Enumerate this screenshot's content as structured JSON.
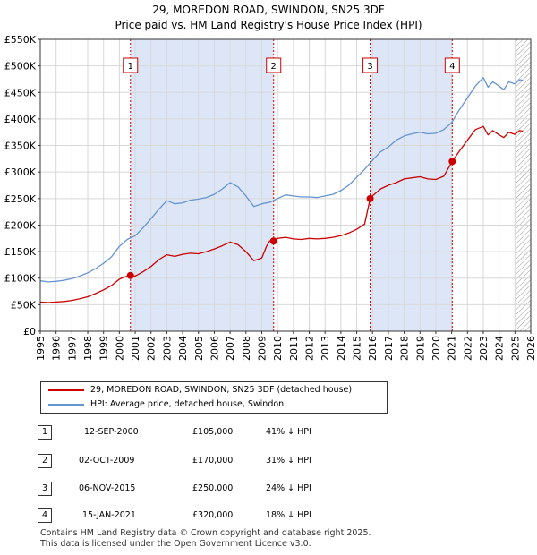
{
  "title": "29, MOREDON ROAD, SWINDON, SN25 3DF",
  "subtitle": "Price paid vs. HM Land Registry's House Price Index (HPI)",
  "colors": {
    "property": "#cc0000",
    "hpi": "#6495d2",
    "shade": "#dde6f7",
    "marker": "#cc0000"
  },
  "chart_data": {
    "type": "line",
    "title": "29, MOREDON ROAD, SWINDON, SN25 3DF",
    "subtitle": "Price paid vs. HM Land Registry's House Price Index (HPI)",
    "xlim": [
      1995,
      2026
    ],
    "ylim": [
      0,
      550000
    ],
    "y_ticks": [
      0,
      50000,
      100000,
      150000,
      200000,
      250000,
      300000,
      350000,
      400000,
      450000,
      500000,
      550000
    ],
    "y_tick_labels": [
      "£0",
      "£50K",
      "£100K",
      "£150K",
      "£200K",
      "£250K",
      "£300K",
      "£350K",
      "£400K",
      "£450K",
      "£500K",
      "£550K"
    ],
    "x_ticks": [
      1995,
      1996,
      1997,
      1998,
      1999,
      2000,
      2001,
      2002,
      2003,
      2004,
      2005,
      2006,
      2007,
      2008,
      2009,
      2010,
      2011,
      2012,
      2013,
      2014,
      2015,
      2016,
      2017,
      2018,
      2019,
      2020,
      2021,
      2022,
      2023,
      2024,
      2025,
      2026
    ],
    "x_tick_labels": [
      "1995",
      "1996",
      "1997",
      "1998",
      "1999",
      "2000",
      "2001",
      "2002",
      "2003",
      "2004",
      "2005",
      "2006",
      "2007",
      "2008",
      "2009",
      "2010",
      "2011",
      "2012",
      "2013",
      "2014",
      "2015",
      "2016",
      "2017",
      "2018",
      "2019",
      "2020",
      "2021",
      "2022",
      "2023",
      "2024",
      "2025",
      "2026"
    ],
    "grid": true,
    "shaded_periods": [
      [
        2000.7,
        2009.75
      ],
      [
        2015.85,
        2021.04
      ]
    ],
    "hatched_after": 2025.0,
    "series": [
      {
        "name": "29, MOREDON ROAD, SWINDON, SN25 3DF (detached house)",
        "x": [
          1995.0,
          1995.5,
          1996.0,
          1996.5,
          1997.0,
          1997.5,
          1998.0,
          1998.5,
          1999.0,
          1999.5,
          2000.0,
          2000.3,
          2000.7,
          2001.0,
          2001.5,
          2002.0,
          2002.5,
          2003.0,
          2003.5,
          2004.0,
          2004.5,
          2005.0,
          2005.5,
          2006.0,
          2006.5,
          2007.0,
          2007.5,
          2008.0,
          2008.5,
          2009.0,
          2009.3,
          2009.5,
          2009.75,
          2010.0,
          2010.5,
          2011.0,
          2011.5,
          2012.0,
          2012.5,
          2013.0,
          2013.5,
          2014.0,
          2014.5,
          2015.0,
          2015.5,
          2015.85,
          2016.0,
          2016.5,
          2017.0,
          2017.5,
          2018.0,
          2018.5,
          2019.0,
          2019.5,
          2020.0,
          2020.5,
          2021.04,
          2021.5,
          2022.0,
          2022.5,
          2023.0,
          2023.3,
          2023.6,
          2024.0,
          2024.3,
          2024.6,
          2025.0,
          2025.3,
          2025.5
        ],
        "values": [
          55000,
          54000,
          55000,
          56000,
          58000,
          61000,
          65000,
          71000,
          78000,
          86000,
          98000,
          102000,
          105000,
          104000,
          112000,
          122000,
          135000,
          144000,
          141000,
          145000,
          147000,
          146000,
          150000,
          155000,
          161000,
          168000,
          163000,
          150000,
          133000,
          138000,
          160000,
          170000,
          170000,
          175000,
          177000,
          174000,
          173000,
          175000,
          174000,
          175000,
          177000,
          180000,
          185000,
          192000,
          202000,
          250000,
          255000,
          268000,
          275000,
          280000,
          287000,
          289000,
          291000,
          287000,
          286000,
          292000,
          320000,
          340000,
          360000,
          380000,
          386000,
          370000,
          378000,
          370000,
          365000,
          375000,
          371000,
          378000,
          377000
        ]
      },
      {
        "name": "HPI: Average price, detached house, Swindon",
        "x": [
          1995.0,
          1995.5,
          1996.0,
          1996.5,
          1997.0,
          1997.5,
          1998.0,
          1998.5,
          1999.0,
          1999.5,
          2000.0,
          2000.5,
          2001.0,
          2001.5,
          2002.0,
          2002.5,
          2003.0,
          2003.5,
          2004.0,
          2004.5,
          2005.0,
          2005.5,
          2006.0,
          2006.5,
          2007.0,
          2007.5,
          2008.0,
          2008.5,
          2009.0,
          2009.5,
          2010.0,
          2010.5,
          2011.0,
          2011.5,
          2012.0,
          2012.5,
          2013.0,
          2013.5,
          2014.0,
          2014.5,
          2015.0,
          2015.5,
          2016.0,
          2016.5,
          2017.0,
          2017.5,
          2018.0,
          2018.5,
          2019.0,
          2019.5,
          2020.0,
          2020.5,
          2021.0,
          2021.5,
          2022.0,
          2022.5,
          2023.0,
          2023.3,
          2023.6,
          2024.0,
          2024.3,
          2024.6,
          2025.0,
          2025.3,
          2025.5
        ],
        "values": [
          95000,
          93000,
          94000,
          96000,
          99000,
          104000,
          110000,
          118000,
          128000,
          140000,
          160000,
          173000,
          180000,
          195000,
          212000,
          230000,
          246000,
          240000,
          242000,
          247000,
          249000,
          252000,
          258000,
          268000,
          280000,
          272000,
          255000,
          235000,
          240000,
          243000,
          250000,
          257000,
          255000,
          253000,
          253000,
          252000,
          255000,
          258000,
          265000,
          275000,
          290000,
          305000,
          322000,
          338000,
          347000,
          360000,
          368000,
          372000,
          375000,
          372000,
          373000,
          380000,
          393000,
          418000,
          440000,
          462000,
          478000,
          460000,
          470000,
          462000,
          455000,
          470000,
          466000,
          474000,
          473000
        ]
      }
    ],
    "sales": [
      {
        "label": "1",
        "x": 2000.7,
        "value": 105000,
        "date": "12-SEP-2000",
        "price": "£105,000",
        "hpi": "41% ↓ HPI"
      },
      {
        "label": "2",
        "x": 2009.75,
        "value": 170000,
        "date": "02-OCT-2009",
        "price": "£170,000",
        "hpi": "31% ↓ HPI"
      },
      {
        "label": "3",
        "x": 2015.85,
        "value": 250000,
        "date": "06-NOV-2015",
        "price": "£250,000",
        "hpi": "24% ↓ HPI"
      },
      {
        "label": "4",
        "x": 2021.04,
        "value": 320000,
        "date": "15-JAN-2021",
        "price": "£320,000",
        "hpi": "18% ↓ HPI"
      }
    ]
  },
  "legend": {
    "items": [
      {
        "label": "29, MOREDON ROAD, SWINDON, SN25 3DF (detached house)"
      },
      {
        "label": "HPI: Average price, detached house, Swindon"
      }
    ]
  },
  "table": {
    "rows": [
      {
        "num": "1",
        "date": "12-SEP-2000",
        "price": "£105,000",
        "hpi": "41% ↓ HPI"
      },
      {
        "num": "2",
        "date": "02-OCT-2009",
        "price": "£170,000",
        "hpi": "31% ↓ HPI"
      },
      {
        "num": "3",
        "date": "06-NOV-2015",
        "price": "£250,000",
        "hpi": "24% ↓ HPI"
      },
      {
        "num": "4",
        "date": "15-JAN-2021",
        "price": "£320,000",
        "hpi": "18% ↓ HPI"
      }
    ]
  },
  "footer": {
    "line1": "Contains HM Land Registry data © Crown copyright and database right 2025.",
    "line2": "This data is licensed under the Open Government Licence v3.0."
  }
}
